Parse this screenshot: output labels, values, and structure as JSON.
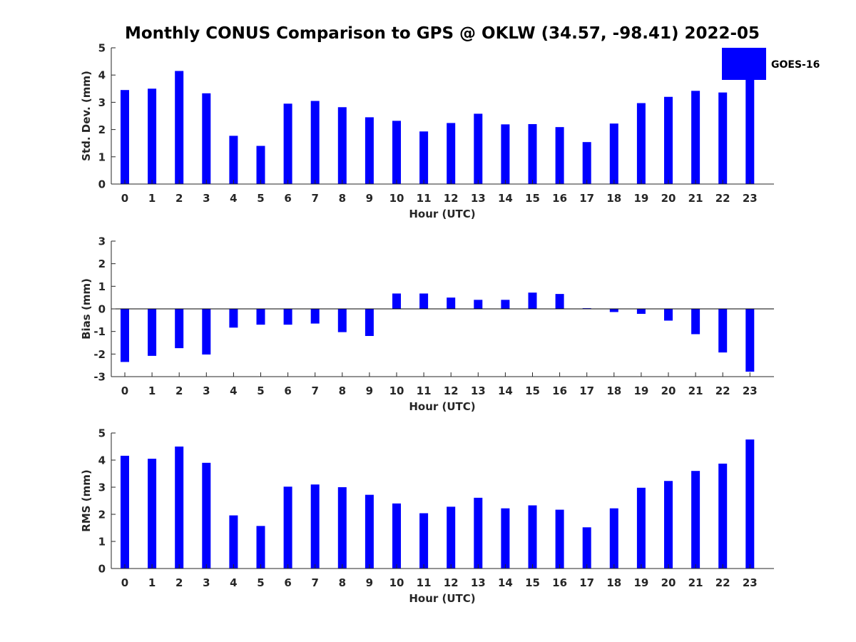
{
  "chart_data": {
    "type": "bar",
    "title": "Monthly CONUS Comparison to GPS @ OKLW (34.57, -98.41) 2022-05",
    "legend": {
      "label": "GOES-16",
      "position": "top-right",
      "color": "#0000FF"
    },
    "bar_color": "#0000FF",
    "categories": [
      "0",
      "1",
      "2",
      "3",
      "4",
      "5",
      "6",
      "7",
      "8",
      "9",
      "10",
      "11",
      "12",
      "13",
      "14",
      "15",
      "16",
      "17",
      "18",
      "19",
      "20",
      "21",
      "22",
      "23"
    ],
    "panels": [
      {
        "id": "std",
        "ylabel": "Std. Dev. (mm)",
        "xlabel": "Hour (UTC)",
        "ylim": [
          0,
          5
        ],
        "yticks": [
          "0",
          "1",
          "2",
          "3",
          "4",
          "5"
        ],
        "values": [
          3.45,
          3.5,
          4.15,
          3.33,
          1.77,
          1.4,
          2.95,
          3.05,
          2.82,
          2.45,
          2.32,
          1.93,
          2.24,
          2.58,
          2.19,
          2.2,
          2.09,
          1.54,
          2.22,
          2.97,
          3.2,
          3.42,
          3.36,
          3.85
        ]
      },
      {
        "id": "bias",
        "ylabel": "Bias (mm)",
        "xlabel": "Hour (UTC)",
        "ylim": [
          -3,
          3
        ],
        "yticks": [
          "-3",
          "-2",
          "-1",
          "0",
          "1",
          "2",
          "3"
        ],
        "values": [
          -2.35,
          -2.08,
          -1.74,
          -2.02,
          -0.83,
          -0.7,
          -0.7,
          -0.65,
          -1.03,
          -1.2,
          0.68,
          0.68,
          0.5,
          0.4,
          0.4,
          0.72,
          0.66,
          0.03,
          -0.14,
          -0.22,
          -0.52,
          -1.12,
          -1.93,
          -2.78
        ]
      },
      {
        "id": "rms",
        "ylabel": "RMS (mm)",
        "xlabel": "Hour (UTC)",
        "ylim": [
          0,
          5
        ],
        "yticks": [
          "0",
          "1",
          "2",
          "3",
          "4",
          "5"
        ],
        "values": [
          4.16,
          4.05,
          4.5,
          3.9,
          1.96,
          1.57,
          3.02,
          3.1,
          3.0,
          2.72,
          2.4,
          2.04,
          2.28,
          2.61,
          2.22,
          2.33,
          2.17,
          1.52,
          2.22,
          2.98,
          3.23,
          3.6,
          3.87,
          4.76
        ]
      }
    ]
  }
}
